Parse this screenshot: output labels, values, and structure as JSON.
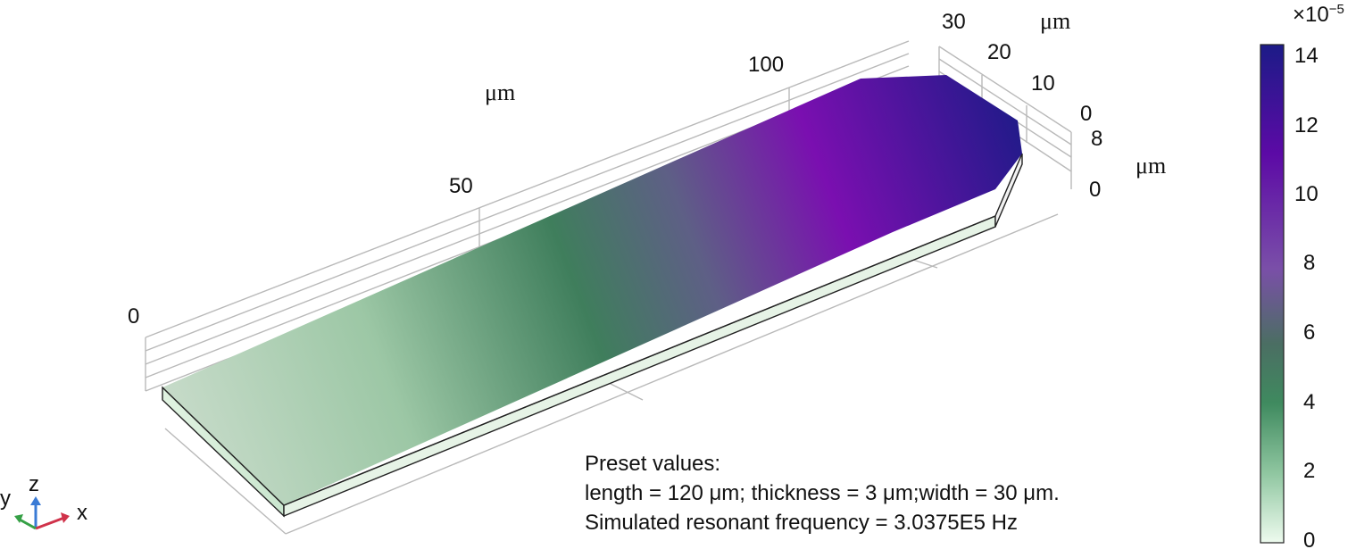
{
  "axes": {
    "x_ticks": [
      "0",
      "50",
      "100"
    ],
    "x_unit": "μm",
    "y_ticks": [
      "30",
      "20",
      "10",
      "0"
    ],
    "y_unit": "μm",
    "z_ticks": [
      "8",
      "0"
    ],
    "z_unit": "μm"
  },
  "colorbar": {
    "multiplier": "×10",
    "exponent": "−5",
    "ticks": [
      "14",
      "12",
      "10",
      "8",
      "6",
      "4",
      "2",
      "0"
    ],
    "colors": [
      "#1c1b87",
      "#5c0aa6",
      "#7a4fa8",
      "#4b6e63",
      "#3f8a5f",
      "#8fc6a0",
      "#eefbee"
    ]
  },
  "triad": {
    "x": "x",
    "y": "y",
    "z": "z"
  },
  "annotation": {
    "line1": "Preset values:",
    "line2": "length = 120 μm; thickness = 3 μm;width = 30 μm.",
    "line3": "Simulated resonant frequency = 3.0375E5 Hz"
  }
}
